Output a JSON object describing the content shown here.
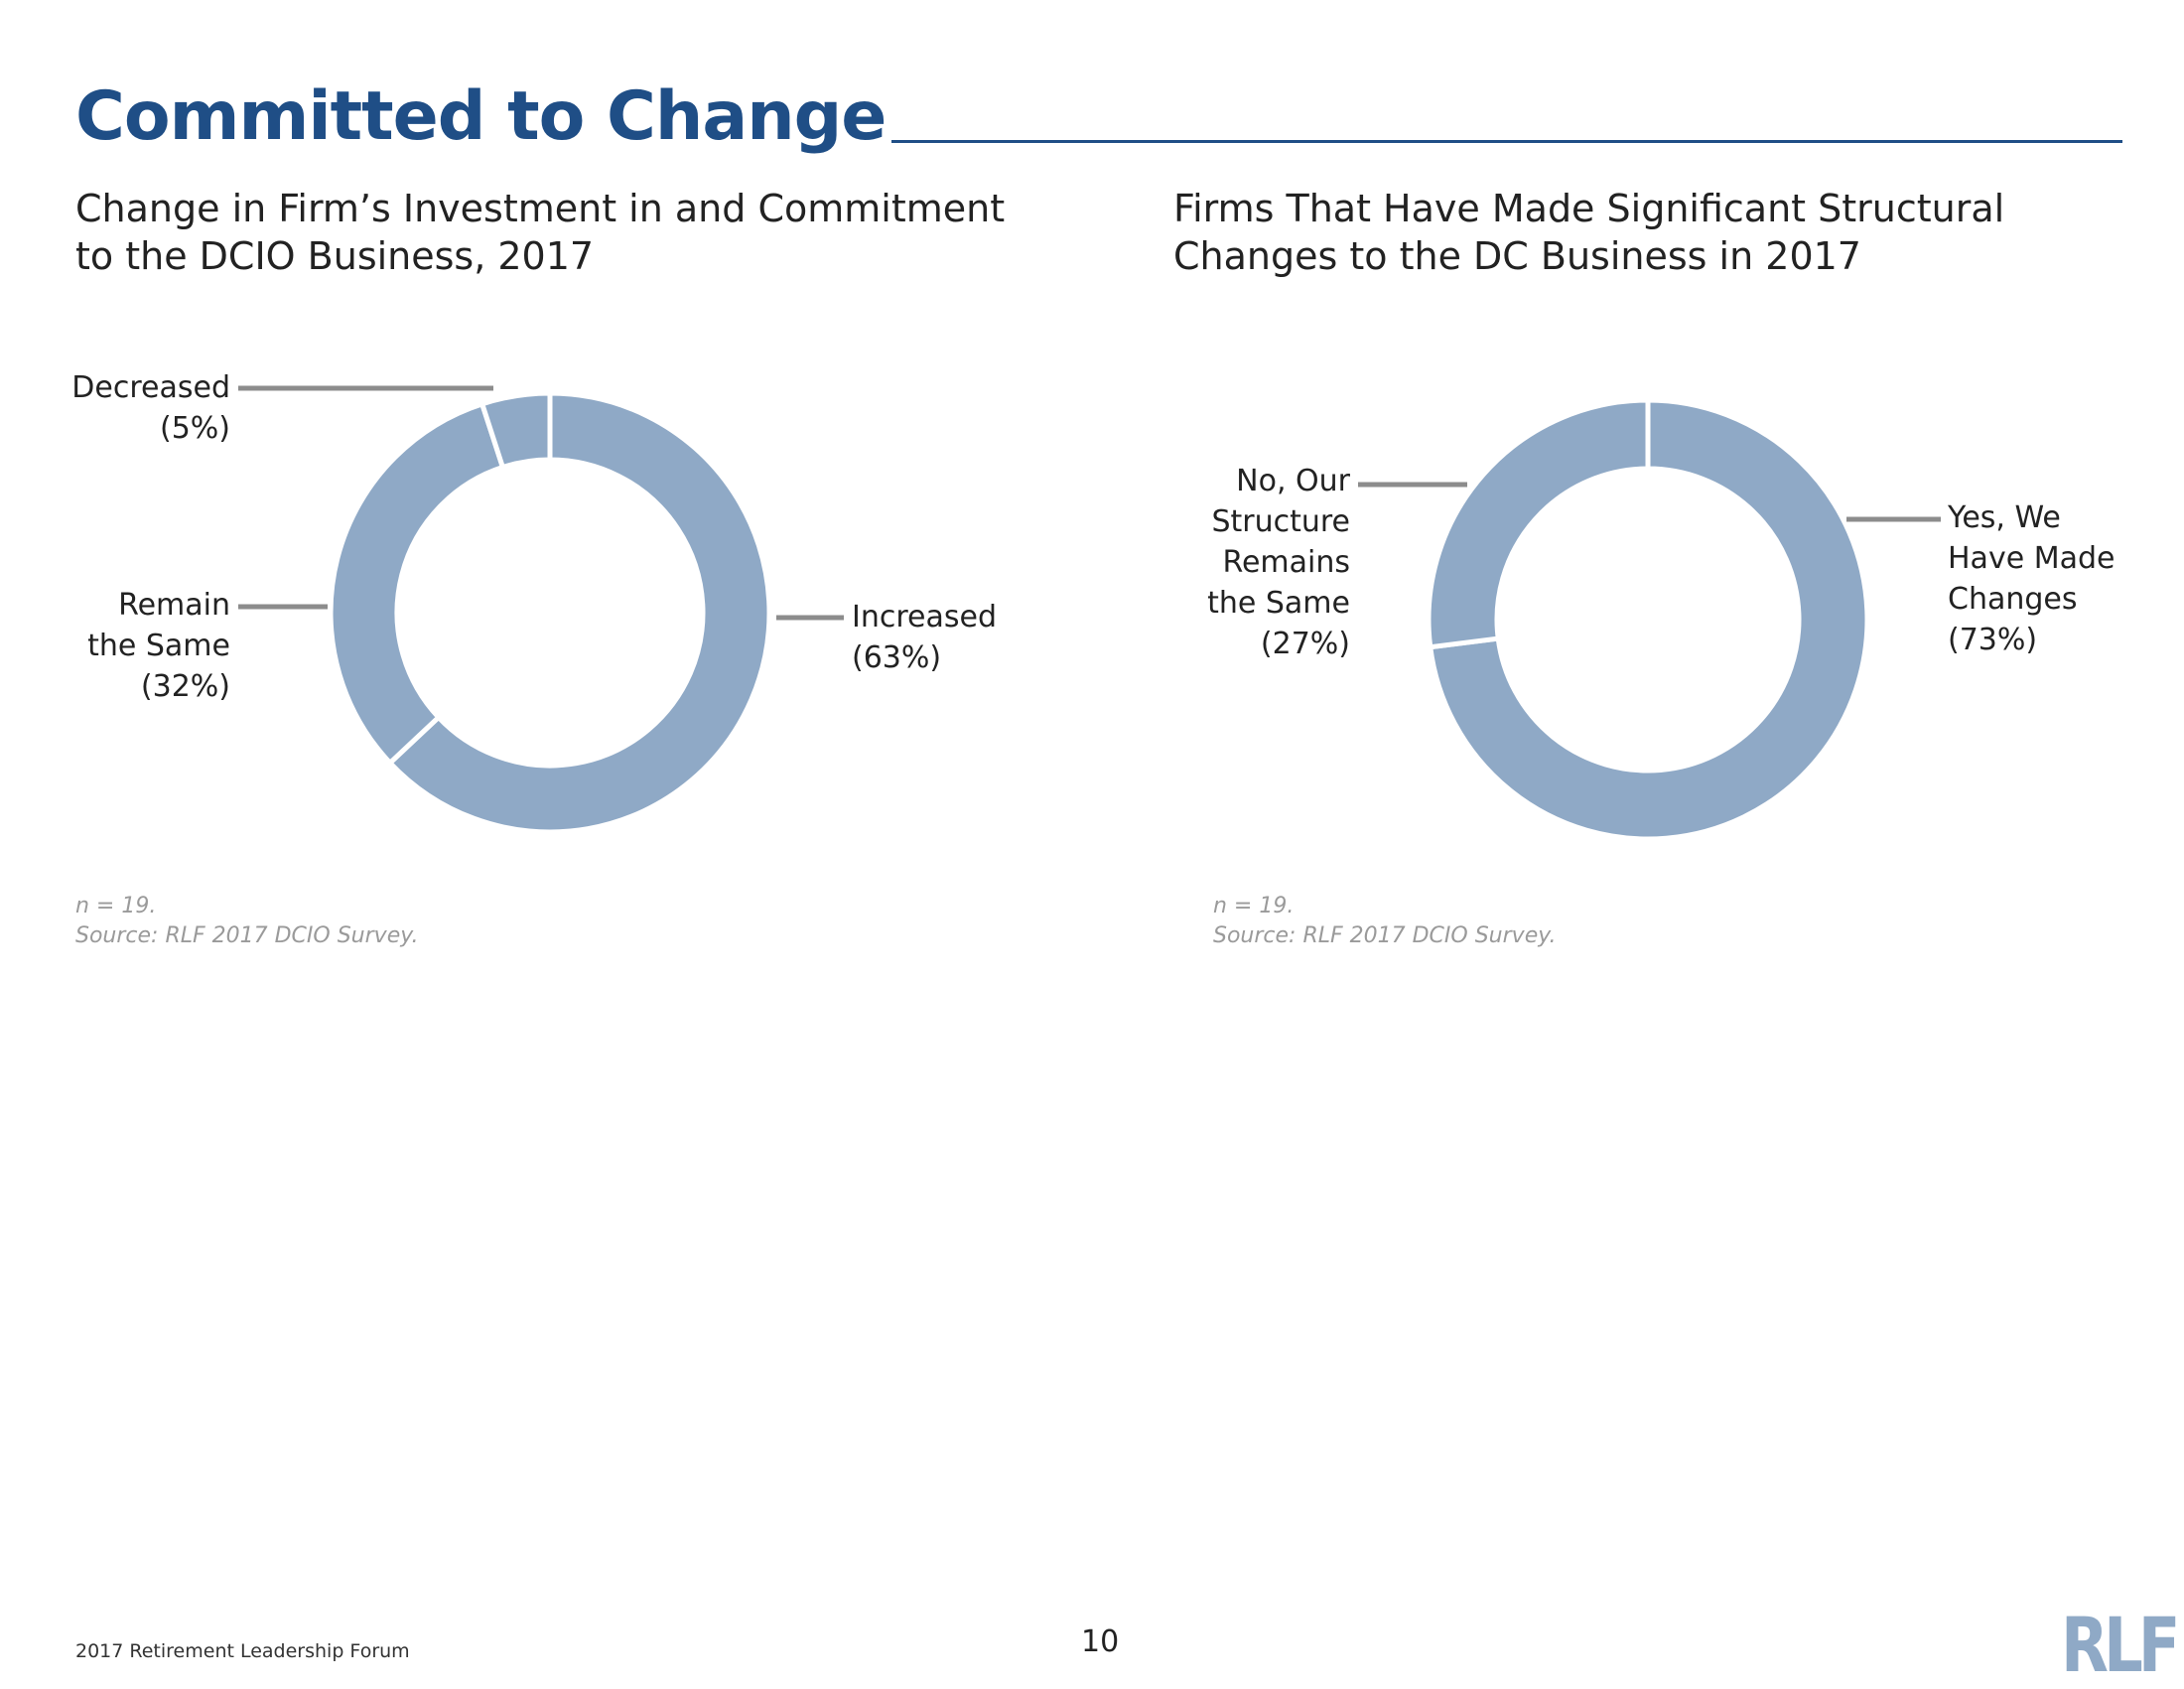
{
  "page": {
    "title": "Committed to Change",
    "footer_text": "2017 Retirement Leadership Forum",
    "page_number": "10",
    "logo_text": "RLF"
  },
  "colors": {
    "title": "#1f4e86",
    "slice": "#8fa9c6",
    "leader": "#8c8c8c",
    "note": "#9a9a9a"
  },
  "chart_data": [
    {
      "type": "pie",
      "style": "donut",
      "title": "Change in Firm’s Investment in and Commitment\nto the DCIO Business, 2017",
      "categories": [
        "Increased",
        "Remain the Same",
        "Decreased"
      ],
      "values": [
        63,
        32,
        5
      ],
      "unit": "%",
      "labels": [
        {
          "lines": [
            "Increased",
            "(63%)"
          ],
          "side": "right"
        },
        {
          "lines": [
            "Remain",
            "the Same",
            "(32%)"
          ],
          "side": "left"
        },
        {
          "lines": [
            "Decreased",
            "(5%)"
          ],
          "side": "left"
        }
      ],
      "notes": [
        "n = 19.",
        "Source: RLF 2017 DCIO Survey."
      ]
    },
    {
      "type": "pie",
      "style": "donut",
      "title": "Firms That Have Made Significant Structural\nChanges to the DC Business in 2017",
      "categories": [
        "Yes, We Have Made Changes",
        "No, Our Structure Remains the Same"
      ],
      "values": [
        73,
        27
      ],
      "unit": "%",
      "labels": [
        {
          "lines": [
            "Yes, We",
            "Have Made",
            "Changes",
            "(73%)"
          ],
          "side": "right"
        },
        {
          "lines": [
            "No, Our",
            "Structure",
            "Remains",
            "the Same",
            "(27%)"
          ],
          "side": "left"
        }
      ],
      "notes": [
        "n = 19.",
        "Source: RLF 2017 DCIO Survey."
      ]
    }
  ]
}
